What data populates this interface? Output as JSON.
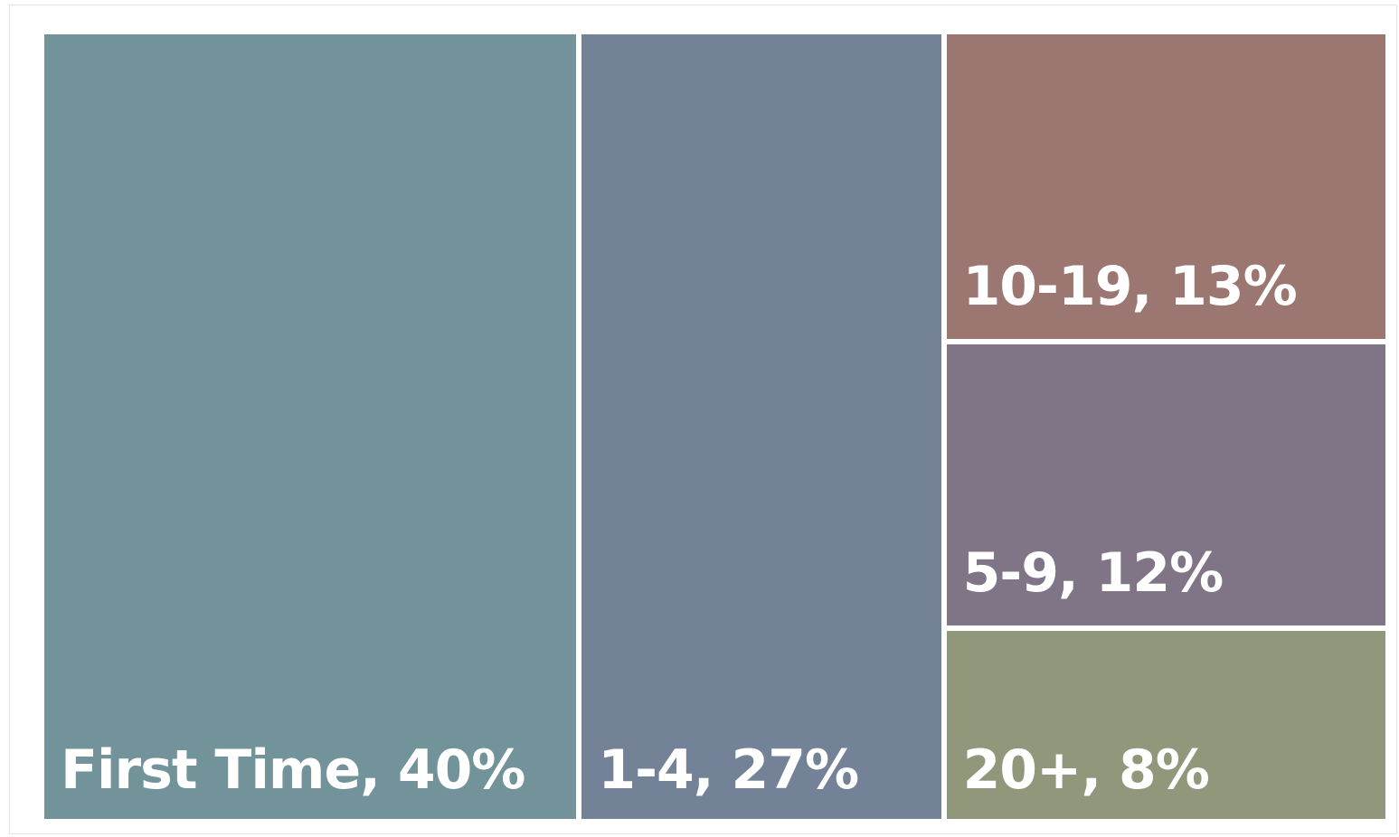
{
  "chart_data": {
    "type": "treemap",
    "title": "",
    "items": [
      {
        "category": "First Time",
        "percent": 40,
        "label": "First Time, 40%",
        "color": "#72939a"
      },
      {
        "category": "1-4",
        "percent": 27,
        "label": "1-4, 27%",
        "color": "#738297"
      },
      {
        "category": "10-19",
        "percent": 13,
        "label": "10-19, 13%",
        "color": "#9c7671"
      },
      {
        "category": "5-9",
        "percent": 12,
        "label": "5-9, 12%",
        "color": "#807587"
      },
      {
        "category": "20+",
        "percent": 8,
        "label": "20+, 8%",
        "color": "#90977a"
      }
    ]
  }
}
